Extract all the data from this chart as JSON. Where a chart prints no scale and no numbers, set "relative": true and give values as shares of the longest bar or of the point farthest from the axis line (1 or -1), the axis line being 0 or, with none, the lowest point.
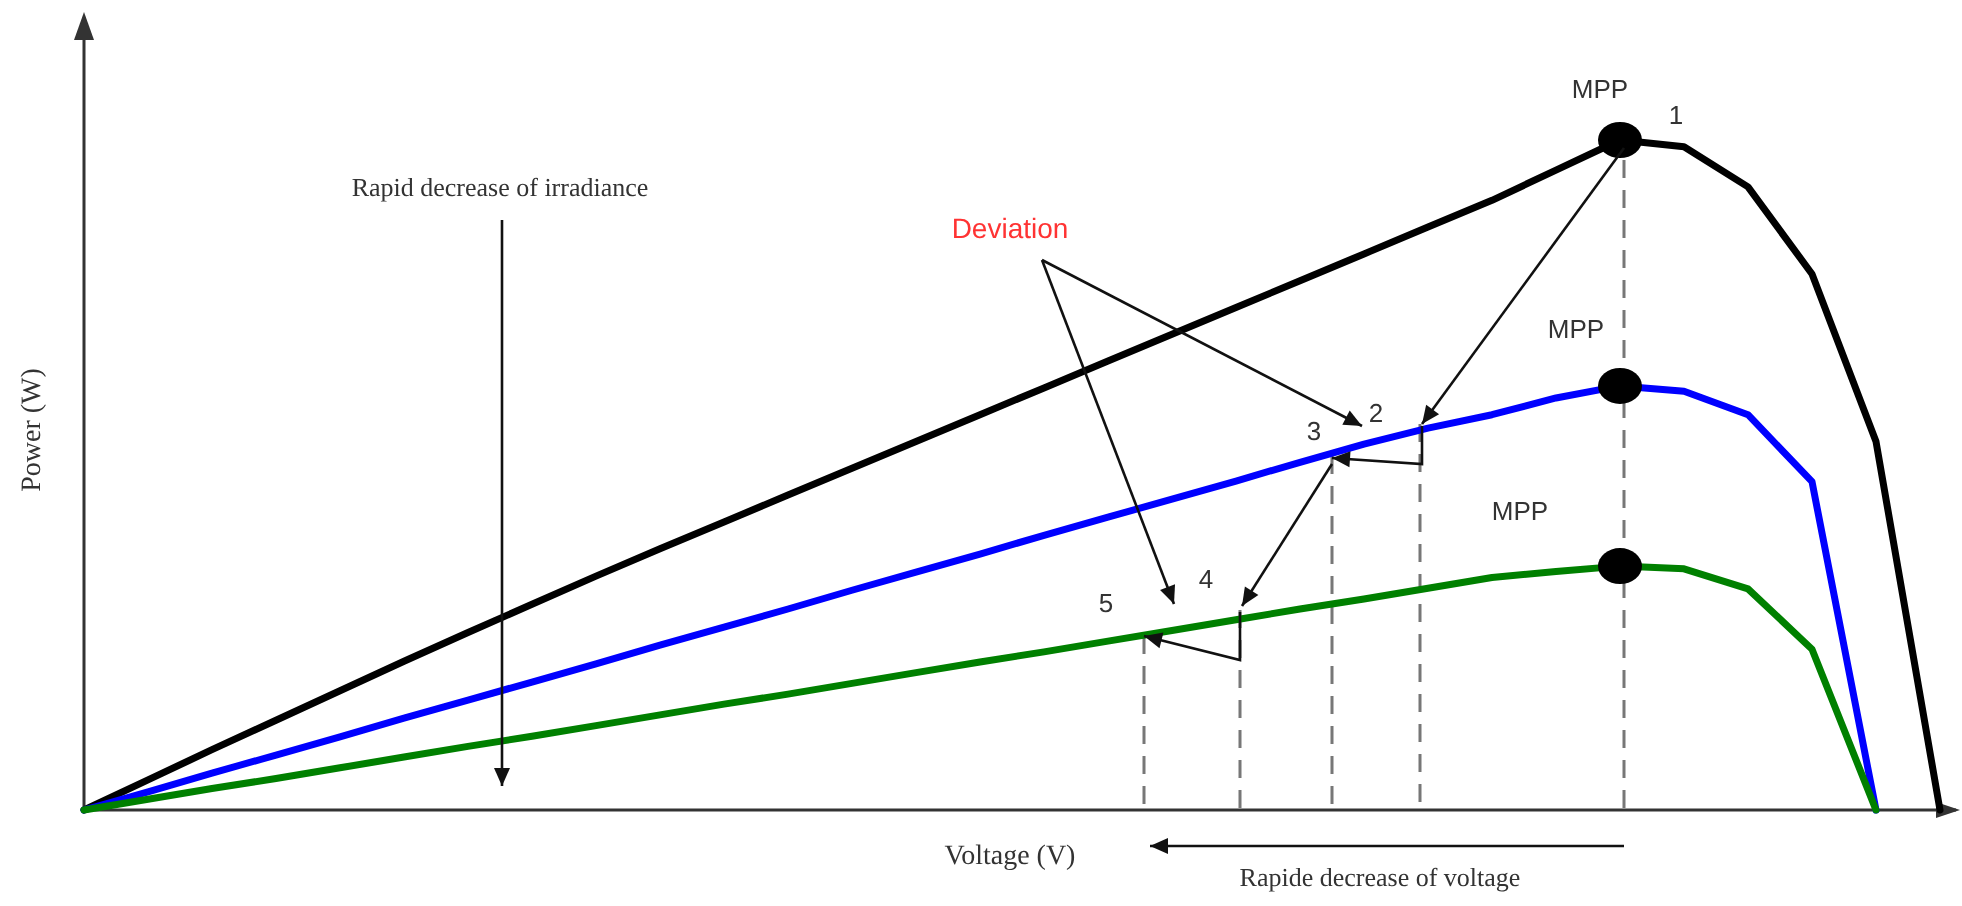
{
  "chart_data": {
    "type": "line",
    "relative": true,
    "xlabel": "Voltage (V)",
    "ylabel": "Power (W)",
    "categories": [
      null,
      null,
      null,
      null,
      null,
      null,
      null,
      null,
      null,
      null,
      null,
      null,
      null,
      null,
      null,
      null,
      null,
      null,
      null,
      null,
      null,
      null,
      null,
      null,
      null,
      null,
      null,
      null,
      null,
      null
    ],
    "series": [
      {
        "color": "#000000",
        "values": [
          0,
          0.045,
          0.09,
          0.134,
          0.178,
          0.222,
          0.265,
          0.307,
          0.349,
          0.39,
          0.43,
          0.47,
          0.51,
          0.55,
          0.59,
          0.63,
          0.67,
          0.71,
          0.75,
          0.79,
          0.83,
          0.87,
          0.91,
          0.955,
          1,
          0.99,
          0.93,
          0.8,
          0.55,
          0
        ]
      },
      {
        "color": "#0000ff",
        "values": [
          0,
          0.027,
          0.055,
          0.082,
          0.109,
          0.137,
          0.164,
          0.191,
          0.218,
          0.246,
          0.273,
          0.3,
          0.328,
          0.355,
          0.382,
          0.41,
          0.437,
          0.464,
          0.491,
          0.519,
          0.546,
          0.57,
          0.59,
          0.615,
          0.633,
          0.625,
          0.59,
          0.49,
          0,
          null
        ]
      },
      {
        "color": "#008000",
        "values": [
          0,
          0.016,
          0.032,
          0.047,
          0.063,
          0.079,
          0.095,
          0.11,
          0.126,
          0.142,
          0.158,
          0.173,
          0.189,
          0.205,
          0.221,
          0.236,
          0.252,
          0.268,
          0.284,
          0.3,
          0.315,
          0.331,
          0.347,
          0.356,
          0.364,
          0.36,
          0.33,
          0.24,
          0,
          null
        ]
      }
    ],
    "annotations": [
      "Rapid decrease of irradiance",
      "Deviation",
      {
        "text": "MPP",
        "y": 1
      },
      {
        "text": "MPP",
        "y": 0.633
      },
      {
        "text": "MPP",
        "y": 0.364
      },
      "1",
      "2",
      "3",
      "4",
      "5",
      "Rapide decrease of voltage"
    ]
  }
}
